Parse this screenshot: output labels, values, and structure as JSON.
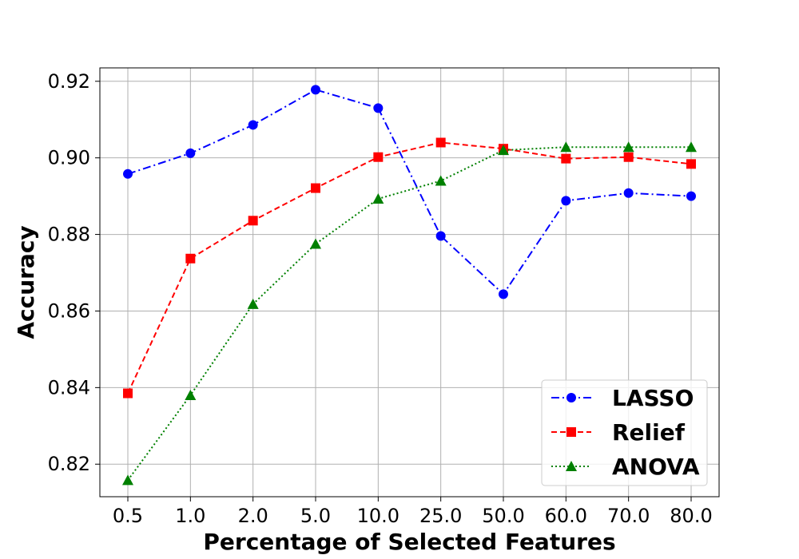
{
  "chart_data": {
    "type": "line",
    "title": "",
    "xlabel": "Percentage of Selected Features",
    "ylabel": "Accuracy",
    "categories": [
      "0.5",
      "1.0",
      "2.0",
      "5.0",
      "10.0",
      "25.0",
      "50.0",
      "60.0",
      "70.0",
      "80.0"
    ],
    "ylim": [
      0.8115,
      0.9235
    ],
    "yticks": [
      0.82,
      0.84,
      0.86,
      0.88,
      0.9,
      0.92
    ],
    "ytick_labels": [
      "0.82",
      "0.84",
      "0.86",
      "0.88",
      "0.90",
      "0.92"
    ],
    "grid": true,
    "legend_position": "bottom-right",
    "series": [
      {
        "name": "LASSO",
        "color": "#0000ff",
        "marker": "circle",
        "linestyle": "dashdot",
        "values": [
          0.8958,
          0.9012,
          0.9086,
          0.9178,
          0.913,
          0.8796,
          0.8644,
          0.8888,
          0.8908,
          0.89
        ]
      },
      {
        "name": "Relief",
        "color": "#ff0000",
        "marker": "square",
        "linestyle": "dashed",
        "values": [
          0.8385,
          0.8737,
          0.8836,
          0.8921,
          0.9002,
          0.904,
          0.9024,
          0.8998,
          0.9002,
          0.8984
        ]
      },
      {
        "name": "ANOVA",
        "color": "#008000",
        "marker": "triangle",
        "linestyle": "dotted",
        "values": [
          0.8158,
          0.838,
          0.8618,
          0.8775,
          0.8893,
          0.894,
          0.902,
          0.9028,
          0.9028,
          0.9028
        ]
      }
    ]
  }
}
